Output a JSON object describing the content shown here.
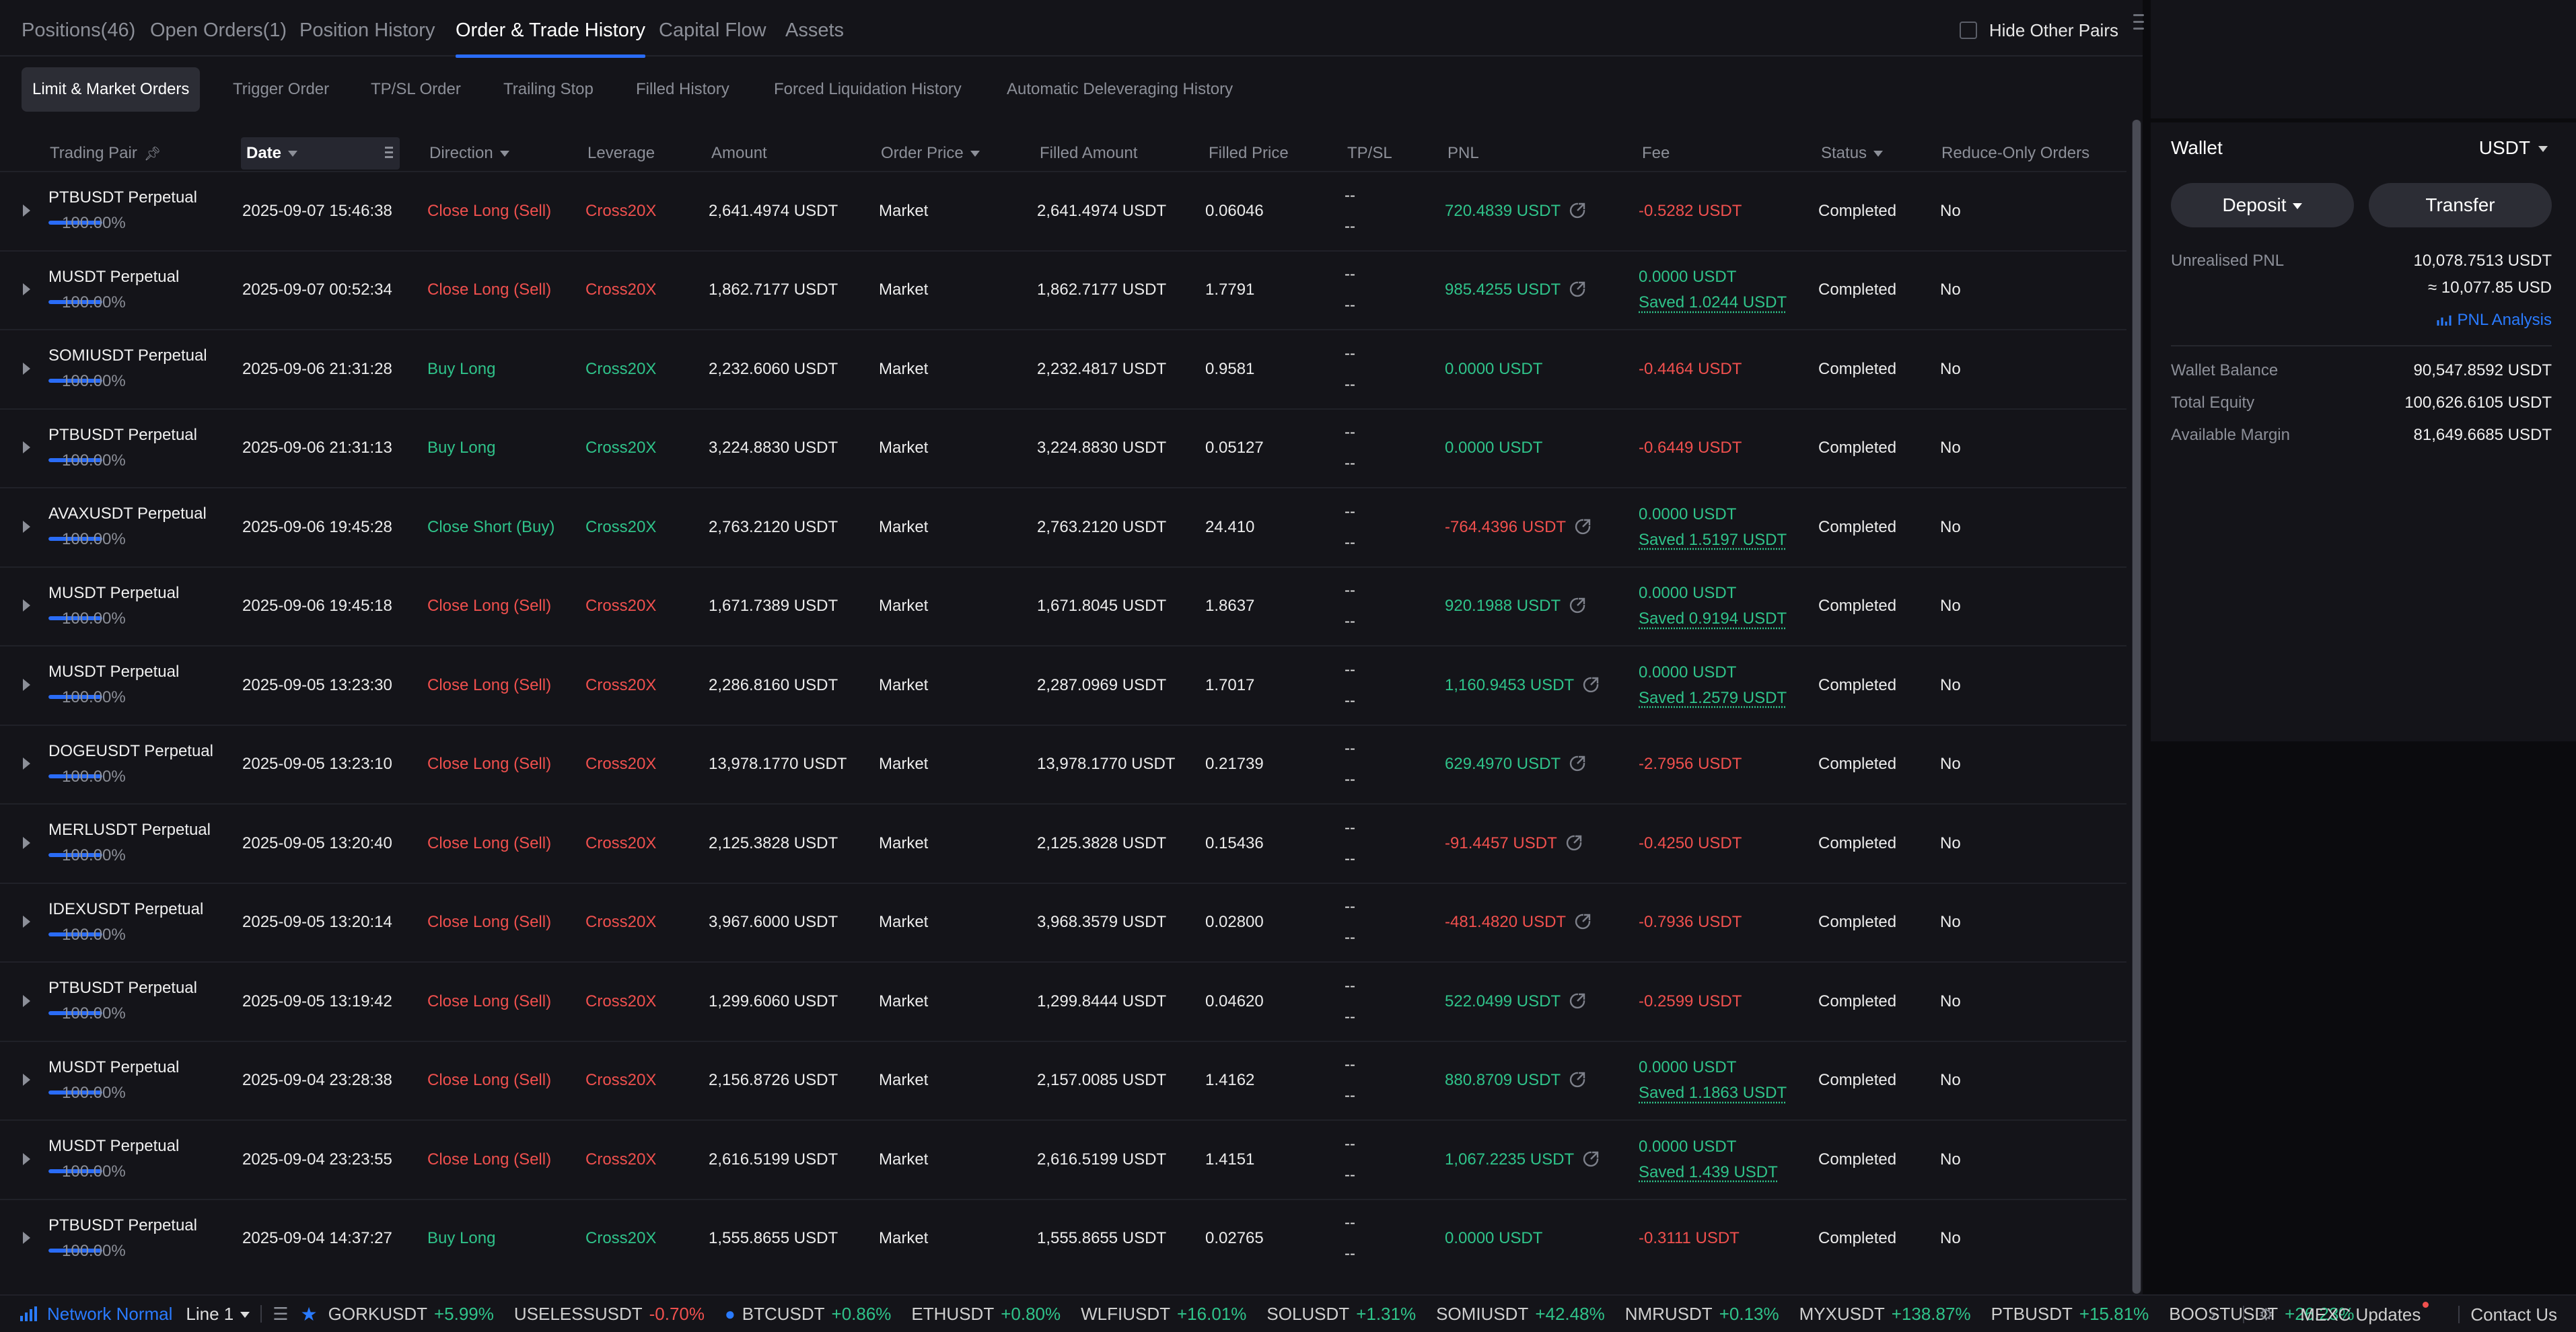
{
  "top_tabs": [
    {
      "label": "Positions(46)"
    },
    {
      "label": "Open Orders(1)"
    },
    {
      "label": "Position History"
    },
    {
      "label": "Order & Trade History"
    },
    {
      "label": "Capital Flow"
    },
    {
      "label": "Assets"
    }
  ],
  "active_top_tab": "Order & Trade History",
  "hide_other_pairs": {
    "label": "Hide Other Pairs",
    "checked": false
  },
  "sub_tabs": [
    {
      "label": "Limit & Market Orders"
    },
    {
      "label": "Trigger Order"
    },
    {
      "label": "TP/SL Order"
    },
    {
      "label": "Trailing Stop"
    },
    {
      "label": "Filled History"
    },
    {
      "label": "Forced Liquidation History"
    },
    {
      "label": "Automatic Deleveraging History"
    }
  ],
  "active_sub_tab": "Limit & Market Orders",
  "columns": {
    "pair": "Trading Pair",
    "date": "Date",
    "direction": "Direction",
    "leverage": "Leverage",
    "amount": "Amount",
    "order_price": "Order Price",
    "filled_amount": "Filled Amount",
    "filled_price": "Filled Price",
    "tpsl": "TP/SL",
    "pnl": "PNL",
    "fee": "Fee",
    "status": "Status",
    "reduce_only": "Reduce-Only Orders"
  },
  "orders": [
    {
      "pair": "PTBUSDT Perpetual",
      "fill_pct": "100.00%",
      "fill_fraction": 1.0,
      "date": "2025-09-07 15:46:38",
      "direction": "Close Long (Sell)",
      "direction_color": "red",
      "leverage": "Cross20X",
      "leverage_color": "red",
      "amount": "2,641.4974 USDT",
      "order_price": "Market",
      "filled_amount": "2,641.4974 USDT",
      "filled_price": "0.06046",
      "tp": "--",
      "sl": "--",
      "pnl": "720.4839 USDT",
      "pnl_color": "green",
      "pnl_share": true,
      "fee": "-0.5282 USDT",
      "fee_color": "red",
      "fee_saved": "",
      "status": "Completed",
      "reduce_only": "No"
    },
    {
      "pair": "MUSDT Perpetual",
      "fill_pct": "100.00%",
      "fill_fraction": 1.0,
      "date": "2025-09-07 00:52:34",
      "direction": "Close Long (Sell)",
      "direction_color": "red",
      "leverage": "Cross20X",
      "leverage_color": "red",
      "amount": "1,862.7177 USDT",
      "order_price": "Market",
      "filled_amount": "1,862.7177 USDT",
      "filled_price": "1.7791",
      "tp": "--",
      "sl": "--",
      "pnl": "985.4255 USDT",
      "pnl_color": "green",
      "pnl_share": true,
      "fee": "0.0000 USDT",
      "fee_color": "green",
      "fee_saved": "Saved 1.0244 USDT",
      "status": "Completed",
      "reduce_only": "No"
    },
    {
      "pair": "SOMIUSDT Perpetual",
      "fill_pct": "100.00%",
      "fill_fraction": 1.0,
      "date": "2025-09-06 21:31:28",
      "direction": "Buy Long",
      "direction_color": "green",
      "leverage": "Cross20X",
      "leverage_color": "green",
      "amount": "2,232.6060 USDT",
      "order_price": "Market",
      "filled_amount": "2,232.4817 USDT",
      "filled_price": "0.9581",
      "tp": "--",
      "sl": "--",
      "pnl": "0.0000 USDT",
      "pnl_color": "green",
      "pnl_share": false,
      "fee": "-0.4464 USDT",
      "fee_color": "red",
      "fee_saved": "",
      "status": "Completed",
      "reduce_only": "No"
    },
    {
      "pair": "PTBUSDT Perpetual",
      "fill_pct": "100.00%",
      "fill_fraction": 1.0,
      "date": "2025-09-06 21:31:13",
      "direction": "Buy Long",
      "direction_color": "green",
      "leverage": "Cross20X",
      "leverage_color": "green",
      "amount": "3,224.8830 USDT",
      "order_price": "Market",
      "filled_amount": "3,224.8830 USDT",
      "filled_price": "0.05127",
      "tp": "--",
      "sl": "--",
      "pnl": "0.0000 USDT",
      "pnl_color": "green",
      "pnl_share": false,
      "fee": "-0.6449 USDT",
      "fee_color": "red",
      "fee_saved": "",
      "status": "Completed",
      "reduce_only": "No"
    },
    {
      "pair": "AVAXUSDT Perpetual",
      "fill_pct": "100.00%",
      "fill_fraction": 1.0,
      "date": "2025-09-06 19:45:28",
      "direction": "Close Short (Buy)",
      "direction_color": "green",
      "leverage": "Cross20X",
      "leverage_color": "green",
      "amount": "2,763.2120 USDT",
      "order_price": "Market",
      "filled_amount": "2,763.2120 USDT",
      "filled_price": "24.410",
      "tp": "--",
      "sl": "--",
      "pnl": "-764.4396 USDT",
      "pnl_color": "red",
      "pnl_share": true,
      "fee": "0.0000 USDT",
      "fee_color": "green",
      "fee_saved": "Saved 1.5197 USDT",
      "status": "Completed",
      "reduce_only": "No"
    },
    {
      "pair": "MUSDT Perpetual",
      "fill_pct": "100.00%",
      "fill_fraction": 1.0,
      "date": "2025-09-06 19:45:18",
      "direction": "Close Long (Sell)",
      "direction_color": "red",
      "leverage": "Cross20X",
      "leverage_color": "red",
      "amount": "1,671.7389 USDT",
      "order_price": "Market",
      "filled_amount": "1,671.8045 USDT",
      "filled_price": "1.8637",
      "tp": "--",
      "sl": "--",
      "pnl": "920.1988 USDT",
      "pnl_color": "green",
      "pnl_share": true,
      "fee": "0.0000 USDT",
      "fee_color": "green",
      "fee_saved": "Saved 0.9194 USDT",
      "status": "Completed",
      "reduce_only": "No"
    },
    {
      "pair": "MUSDT Perpetual",
      "fill_pct": "100.00%",
      "fill_fraction": 1.0,
      "date": "2025-09-05 13:23:30",
      "direction": "Close Long (Sell)",
      "direction_color": "red",
      "leverage": "Cross20X",
      "leverage_color": "red",
      "amount": "2,286.8160 USDT",
      "order_price": "Market",
      "filled_amount": "2,287.0969 USDT",
      "filled_price": "1.7017",
      "tp": "--",
      "sl": "--",
      "pnl": "1,160.9453 USDT",
      "pnl_color": "green",
      "pnl_share": true,
      "fee": "0.0000 USDT",
      "fee_color": "green",
      "fee_saved": "Saved 1.2579 USDT",
      "status": "Completed",
      "reduce_only": "No"
    },
    {
      "pair": "DOGEUSDT Perpetual",
      "fill_pct": "100.00%",
      "fill_fraction": 1.0,
      "date": "2025-09-05 13:23:10",
      "direction": "Close Long (Sell)",
      "direction_color": "red",
      "leverage": "Cross20X",
      "leverage_color": "red",
      "amount": "13,978.1770 USDT",
      "order_price": "Market",
      "filled_amount": "13,978.1770 USDT",
      "filled_price": "0.21739",
      "tp": "--",
      "sl": "--",
      "pnl": "629.4970 USDT",
      "pnl_color": "green",
      "pnl_share": true,
      "fee": "-2.7956 USDT",
      "fee_color": "red",
      "fee_saved": "",
      "status": "Completed",
      "reduce_only": "No"
    },
    {
      "pair": "MERLUSDT Perpetual",
      "fill_pct": "100.00%",
      "fill_fraction": 1.0,
      "date": "2025-09-05 13:20:40",
      "direction": "Close Long (Sell)",
      "direction_color": "red",
      "leverage": "Cross20X",
      "leverage_color": "red",
      "amount": "2,125.3828 USDT",
      "order_price": "Market",
      "filled_amount": "2,125.3828 USDT",
      "filled_price": "0.15436",
      "tp": "--",
      "sl": "--",
      "pnl": "-91.4457 USDT",
      "pnl_color": "red",
      "pnl_share": true,
      "fee": "-0.4250 USDT",
      "fee_color": "red",
      "fee_saved": "",
      "status": "Completed",
      "reduce_only": "No"
    },
    {
      "pair": "IDEXUSDT Perpetual",
      "fill_pct": "100.00%",
      "fill_fraction": 1.0,
      "date": "2025-09-05 13:20:14",
      "direction": "Close Long (Sell)",
      "direction_color": "red",
      "leverage": "Cross20X",
      "leverage_color": "red",
      "amount": "3,967.6000 USDT",
      "order_price": "Market",
      "filled_amount": "3,968.3579 USDT",
      "filled_price": "0.02800",
      "tp": "--",
      "sl": "--",
      "pnl": "-481.4820 USDT",
      "pnl_color": "red",
      "pnl_share": true,
      "fee": "-0.7936 USDT",
      "fee_color": "red",
      "fee_saved": "",
      "status": "Completed",
      "reduce_only": "No"
    },
    {
      "pair": "PTBUSDT Perpetual",
      "fill_pct": "100.00%",
      "fill_fraction": 1.0,
      "date": "2025-09-05 13:19:42",
      "direction": "Close Long (Sell)",
      "direction_color": "red",
      "leverage": "Cross20X",
      "leverage_color": "red",
      "amount": "1,299.6060 USDT",
      "order_price": "Market",
      "filled_amount": "1,299.8444 USDT",
      "filled_price": "0.04620",
      "tp": "--",
      "sl": "--",
      "pnl": "522.0499 USDT",
      "pnl_color": "green",
      "pnl_share": true,
      "fee": "-0.2599 USDT",
      "fee_color": "red",
      "fee_saved": "",
      "status": "Completed",
      "reduce_only": "No"
    },
    {
      "pair": "MUSDT Perpetual",
      "fill_pct": "100.00%",
      "fill_fraction": 1.0,
      "date": "2025-09-04 23:28:38",
      "direction": "Close Long (Sell)",
      "direction_color": "red",
      "leverage": "Cross20X",
      "leverage_color": "red",
      "amount": "2,156.8726 USDT",
      "order_price": "Market",
      "filled_amount": "2,157.0085 USDT",
      "filled_price": "1.4162",
      "tp": "--",
      "sl": "--",
      "pnl": "880.8709 USDT",
      "pnl_color": "green",
      "pnl_share": true,
      "fee": "0.0000 USDT",
      "fee_color": "green",
      "fee_saved": "Saved 1.1863 USDT",
      "status": "Completed",
      "reduce_only": "No"
    },
    {
      "pair": "MUSDT Perpetual",
      "fill_pct": "100.00%",
      "fill_fraction": 1.0,
      "date": "2025-09-04 23:23:55",
      "direction": "Close Long (Sell)",
      "direction_color": "red",
      "leverage": "Cross20X",
      "leverage_color": "red",
      "amount": "2,616.5199 USDT",
      "order_price": "Market",
      "filled_amount": "2,616.5199 USDT",
      "filled_price": "1.4151",
      "tp": "--",
      "sl": "--",
      "pnl": "1,067.2235 USDT",
      "pnl_color": "green",
      "pnl_share": true,
      "fee": "0.0000 USDT",
      "fee_color": "green",
      "fee_saved": "Saved 1.439 USDT",
      "status": "Completed",
      "reduce_only": "No"
    },
    {
      "pair": "PTBUSDT Perpetual",
      "fill_pct": "100.00%",
      "fill_fraction": 1.0,
      "date": "2025-09-04 14:37:27",
      "direction": "Buy Long",
      "direction_color": "green",
      "leverage": "Cross20X",
      "leverage_color": "green",
      "amount": "1,555.8655 USDT",
      "order_price": "Market",
      "filled_amount": "1,555.8655 USDT",
      "filled_price": "0.02765",
      "tp": "--",
      "sl": "--",
      "pnl": "0.0000 USDT",
      "pnl_color": "green",
      "pnl_share": false,
      "fee": "-0.3111 USDT",
      "fee_color": "red",
      "fee_saved": "",
      "status": "Completed",
      "reduce_only": "No"
    }
  ],
  "wallet": {
    "title": "Wallet",
    "currency": "USDT",
    "deposit_label": "Deposit",
    "transfer_label": "Transfer",
    "unrealised_pnl_label": "Unrealised PNL",
    "unrealised_pnl": "10,078.7513 USDT",
    "unrealised_pnl_usd": "≈ 10,077.85 USD",
    "pnl_analysis_label": "PNL Analysis",
    "wallet_balance_label": "Wallet Balance",
    "wallet_balance": "90,547.8592 USDT",
    "total_equity_label": "Total Equity",
    "total_equity": "100,626.6105 USDT",
    "available_margin_label": "Available Margin",
    "available_margin": "81,649.6685 USDT"
  },
  "footer": {
    "network_label": "Network Normal",
    "line_label": "Line 1",
    "tickers": [
      {
        "symbol": "GORKUSDT",
        "change": "+5.99%",
        "color": "green"
      },
      {
        "symbol": "USELESSUSDT",
        "change": "-0.70%",
        "color": "red"
      },
      {
        "symbol": "BTCUSDT",
        "change": "+0.86%",
        "color": "green"
      },
      {
        "symbol": "ETHUSDT",
        "change": "+0.80%",
        "color": "green"
      },
      {
        "symbol": "WLFIUSDT",
        "change": "+16.01%",
        "color": "green"
      },
      {
        "symbol": "SOLUSDT",
        "change": "+1.31%",
        "color": "green"
      },
      {
        "symbol": "SOMIUSDT",
        "change": "+42.48%",
        "color": "green"
      },
      {
        "symbol": "NMRUSDT",
        "change": "+0.13%",
        "color": "green"
      },
      {
        "symbol": "MYXUSDT",
        "change": "+138.87%",
        "color": "green"
      },
      {
        "symbol": "PTBUSDT",
        "change": "+15.81%",
        "color": "green"
      },
      {
        "symbol": "BOOSTUSDT",
        "change": "+26.23%",
        "color": "green"
      }
    ],
    "updates_label": "MEXC Updates",
    "contact_label": "Contact Us"
  },
  "colors": {
    "green": "#2fc38a",
    "red": "#f0504e",
    "accent_blue": "#2a6cf6"
  }
}
